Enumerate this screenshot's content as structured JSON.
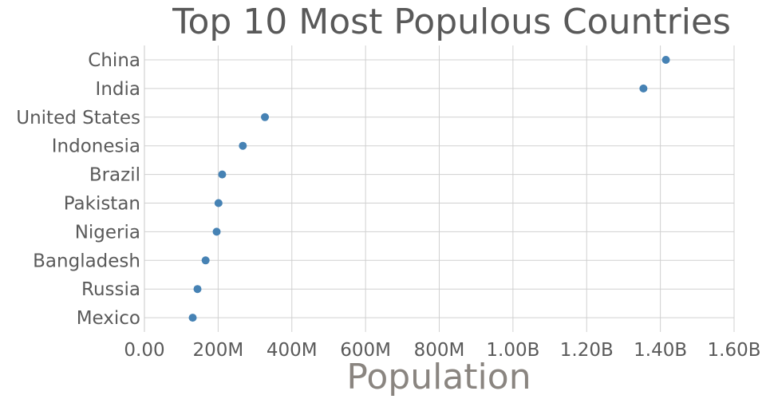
{
  "chart_data": {
    "type": "scatter",
    "title": "Top 10 Most Populous Countries",
    "xlabel": "Population",
    "ylabel": "",
    "categories": [
      "China",
      "India",
      "United States",
      "Indonesia",
      "Brazil",
      "Pakistan",
      "Nigeria",
      "Bangladesh",
      "Russia",
      "Mexico"
    ],
    "values": [
      1415000000,
      1354000000,
      327000000,
      267000000,
      211000000,
      201000000,
      196000000,
      166000000,
      144000000,
      131000000
    ],
    "xlim": [
      0,
      1600000000
    ],
    "xticks": [
      0,
      200000000,
      400000000,
      600000000,
      800000000,
      1000000000,
      1200000000,
      1400000000,
      1600000000
    ],
    "xtick_labels": [
      "0.00",
      "200M",
      "400M",
      "600M",
      "800M",
      "1.00B",
      "1.20B",
      "1.40B",
      "1.60B"
    ],
    "grid": true,
    "marker_color": "#4682b4"
  }
}
